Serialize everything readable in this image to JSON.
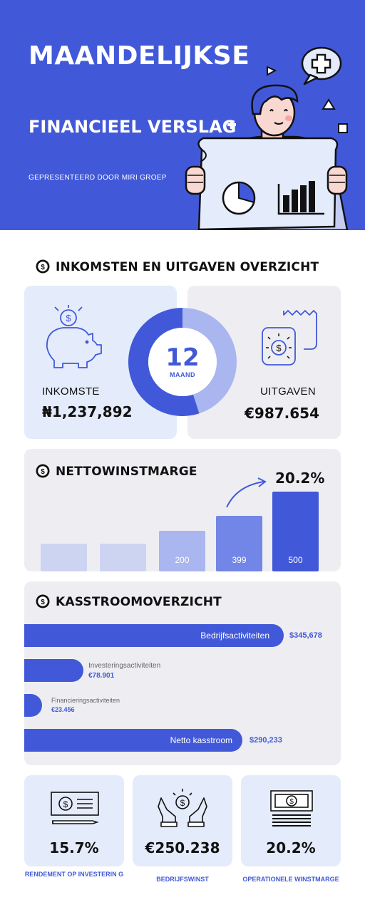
{
  "header": {
    "title_line1": "MAANDELIJKSE",
    "title_line2": "FINANCIEEL VERSLAG",
    "subtitle": "GEPRESENTEERD DOOR MIRI GROEP"
  },
  "overview": {
    "title": "INKOMSTEN EN UITGAVEN OVERZICHT",
    "income_label": "INKOMSTE",
    "income_value": "₦1,237,892",
    "expense_label": "UITGAVEN",
    "expense_value": "€987.654",
    "donut_number": "12",
    "donut_unit": "MAAND",
    "donut_income_share": 0.55
  },
  "margin": {
    "title": "NETTOWINSTMARGE",
    "highlight": "20.2%",
    "bars": [
      {
        "label": "",
        "value": 100,
        "color": "#cdd4f2"
      },
      {
        "label": "",
        "value": 100,
        "color": "#cdd4f2"
      },
      {
        "label": "200",
        "value": 148,
        "color": "#a9b6ef"
      },
      {
        "label": "399",
        "value": 203,
        "color": "#7186e6"
      },
      {
        "label": "500",
        "value": 290,
        "color": "#4159d8"
      }
    ]
  },
  "cashflow": {
    "title": "KASSTROOMOVERZICHT",
    "items": [
      {
        "label": "Bedrijfsactiviteiten",
        "value": "$345,678"
      },
      {
        "label": "Investeringsactiviteiten",
        "value": "€78.901"
      },
      {
        "label": "Financieringsactiviteiten",
        "value": "€23.456"
      },
      {
        "label": "Netto kasstroom",
        "value": "$290,233"
      }
    ]
  },
  "kpis": [
    {
      "value": "15.7%",
      "label": "RENDEMENT OP INVESTERIN G",
      "icon": "cheque-icon"
    },
    {
      "value": "€250.238",
      "label": "BEDRIJFSWINST",
      "icon": "hands-money-icon"
    },
    {
      "value": "20.2%",
      "label": "OPERATIONELE WINSTMARGE",
      "icon": "money-stack-icon"
    }
  ],
  "colors": {
    "brand": "#4159d8",
    "light_blue": "#e4ebfb",
    "grey_card": "#eeeef2"
  }
}
